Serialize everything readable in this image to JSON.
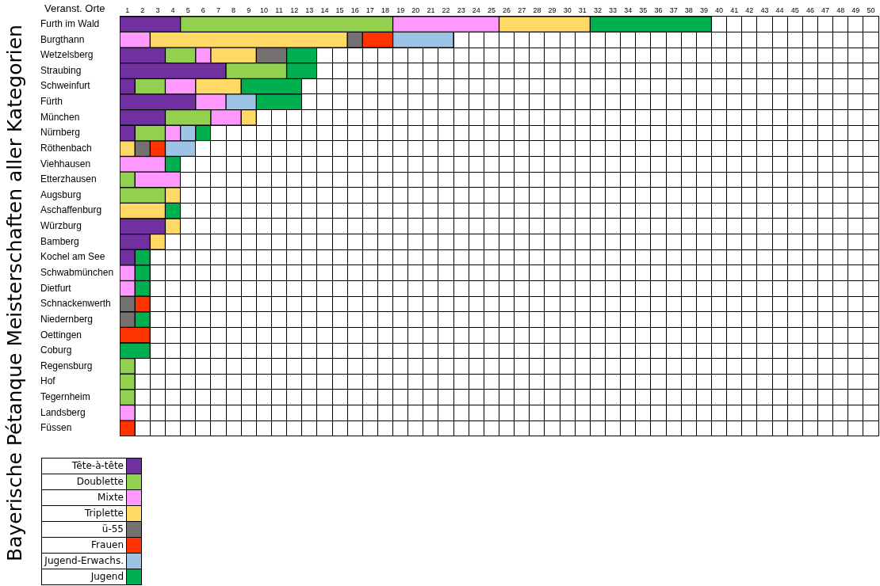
{
  "chart_data": {
    "type": "bar",
    "orientation": "horizontal",
    "stacked": true,
    "title": "Bayerische Pétanque Meisterschaften aller Kategorien",
    "ylabel": "Veranst. Orte",
    "categories": [
      "Furth im Wald",
      "Burgthann",
      "Wetzelsberg",
      "Straubing",
      "Schweinfurt",
      "Fürth",
      "München",
      "Nürnberg",
      "Röthenbach",
      "Viehhausen",
      "Etterzhausen",
      "Augsburg",
      "Aschaffenburg",
      "Würzburg",
      "Bamberg",
      "Kochel am See",
      "Schwabmünchen",
      "Dietfurt",
      "Schnackenwerth",
      "Niedernberg",
      "Oettingen",
      "Coburg",
      "Regensburg",
      "Hof",
      "Tegernheim",
      "Landsberg",
      "Füssen"
    ],
    "series": [
      {
        "name": "Tête-à-tête",
        "color": "#7030a0",
        "values": [
          4,
          0,
          3,
          7,
          1,
          5,
          3,
          1,
          0,
          0,
          0,
          0,
          0,
          3,
          2,
          1,
          0,
          0,
          0,
          0,
          0,
          0,
          0,
          0,
          0,
          0,
          0
        ]
      },
      {
        "name": "Doublette",
        "color": "#92d050",
        "values": [
          14,
          0,
          2,
          4,
          2,
          0,
          3,
          2,
          0,
          0,
          1,
          3,
          0,
          0,
          0,
          0,
          0,
          0,
          0,
          0,
          0,
          0,
          1,
          1,
          1,
          0,
          0
        ]
      },
      {
        "name": "Mixte",
        "color": "#ff99ff",
        "values": [
          7,
          2,
          1,
          0,
          2,
          2,
          2,
          1,
          0,
          3,
          3,
          0,
          0,
          0,
          0,
          0,
          1,
          1,
          0,
          0,
          0,
          0,
          0,
          0,
          0,
          1,
          0
        ]
      },
      {
        "name": "Triplette",
        "color": "#ffd966",
        "values": [
          6,
          13,
          3,
          0,
          3,
          0,
          1,
          0,
          1,
          0,
          0,
          1,
          3,
          1,
          1,
          0,
          0,
          0,
          0,
          0,
          0,
          0,
          0,
          0,
          0,
          0,
          0
        ]
      },
      {
        "name": "ü-55",
        "color": "#767171",
        "values": [
          0,
          1,
          2,
          0,
          0,
          0,
          0,
          0,
          1,
          0,
          0,
          0,
          0,
          0,
          0,
          0,
          0,
          0,
          1,
          1,
          0,
          0,
          0,
          0,
          0,
          0,
          0
        ]
      },
      {
        "name": "Frauen",
        "color": "#ff3300",
        "values": [
          0,
          2,
          0,
          0,
          0,
          0,
          0,
          0,
          1,
          0,
          0,
          0,
          0,
          0,
          0,
          0,
          0,
          0,
          1,
          0,
          2,
          0,
          0,
          0,
          0,
          0,
          1
        ]
      },
      {
        "name": "Jugend-Erwachs.",
        "color": "#9dc3e6",
        "values": [
          0,
          4,
          0,
          0,
          0,
          2,
          0,
          1,
          2,
          0,
          0,
          0,
          0,
          0,
          0,
          0,
          0,
          0,
          0,
          0,
          0,
          0,
          0,
          0,
          0,
          0,
          0
        ]
      },
      {
        "name": "Jugend",
        "color": "#00b050",
        "values": [
          8,
          0,
          2,
          2,
          4,
          3,
          0,
          1,
          0,
          1,
          0,
          0,
          1,
          0,
          0,
          1,
          1,
          1,
          0,
          1,
          0,
          2,
          0,
          0,
          0,
          0,
          0
        ]
      }
    ],
    "xlim": [
      0,
      50
    ],
    "xticks": [
      {
        "value": 0.5,
        "label": "1"
      },
      {
        "value": 1.5,
        "label": "2"
      },
      {
        "value": 2.5,
        "label": "3"
      },
      {
        "value": 3.5,
        "label": "4"
      },
      {
        "value": 4.5,
        "label": "5"
      },
      {
        "value": 5.5,
        "label": "6"
      },
      {
        "value": 6.5,
        "label": "7"
      },
      {
        "value": 7.5,
        "label": "8"
      },
      {
        "value": 8.5,
        "label": "9"
      },
      {
        "value": 9.5,
        "label": "10"
      },
      {
        "value": 10.5,
        "label": "11"
      },
      {
        "value": 11.5,
        "label": "12"
      },
      {
        "value": 12.5,
        "label": "13"
      },
      {
        "value": 13.5,
        "label": "14"
      },
      {
        "value": 14.5,
        "label": "15"
      },
      {
        "value": 15.5,
        "label": "16"
      },
      {
        "value": 16.5,
        "label": "17"
      },
      {
        "value": 17.5,
        "label": "18"
      },
      {
        "value": 18.5,
        "label": "19"
      },
      {
        "value": 19.5,
        "label": "20"
      },
      {
        "value": 20.5,
        "label": "21"
      },
      {
        "value": 21.5,
        "label": "22"
      },
      {
        "value": 22.5,
        "label": "23"
      },
      {
        "value": 23.5,
        "label": "24"
      },
      {
        "value": 24.5,
        "label": "25"
      },
      {
        "value": 25.5,
        "label": "26"
      },
      {
        "value": 26.5,
        "label": "27"
      },
      {
        "value": 27.5,
        "label": "28"
      },
      {
        "value": 28.5,
        "label": "29"
      },
      {
        "value": 29.5,
        "label": "30"
      },
      {
        "value": 30.5,
        "label": "31"
      },
      {
        "value": 31.5,
        "label": "32"
      },
      {
        "value": 32.5,
        "label": "33"
      },
      {
        "value": 33.5,
        "label": "34"
      },
      {
        "value": 34.5,
        "label": "35"
      },
      {
        "value": 35.5,
        "label": "36"
      },
      {
        "value": 36.5,
        "label": "37"
      },
      {
        "value": 37.5,
        "label": "38"
      },
      {
        "value": 38.5,
        "label": "39"
      },
      {
        "value": 39.5,
        "label": "40"
      },
      {
        "value": 40.5,
        "label": "41"
      },
      {
        "value": 41.5,
        "label": "42"
      },
      {
        "value": 42.5,
        "label": "43"
      },
      {
        "value": 43.5,
        "label": "44"
      },
      {
        "value": 44.5,
        "label": "45"
      },
      {
        "value": 45.5,
        "label": "46"
      },
      {
        "value": 46.5,
        "label": "47"
      },
      {
        "value": 47.5,
        "label": "48"
      },
      {
        "value": 48.5,
        "label": "49"
      },
      {
        "value": 49.5,
        "label": "50"
      }
    ],
    "grid": true,
    "legend": "bottom left"
  }
}
